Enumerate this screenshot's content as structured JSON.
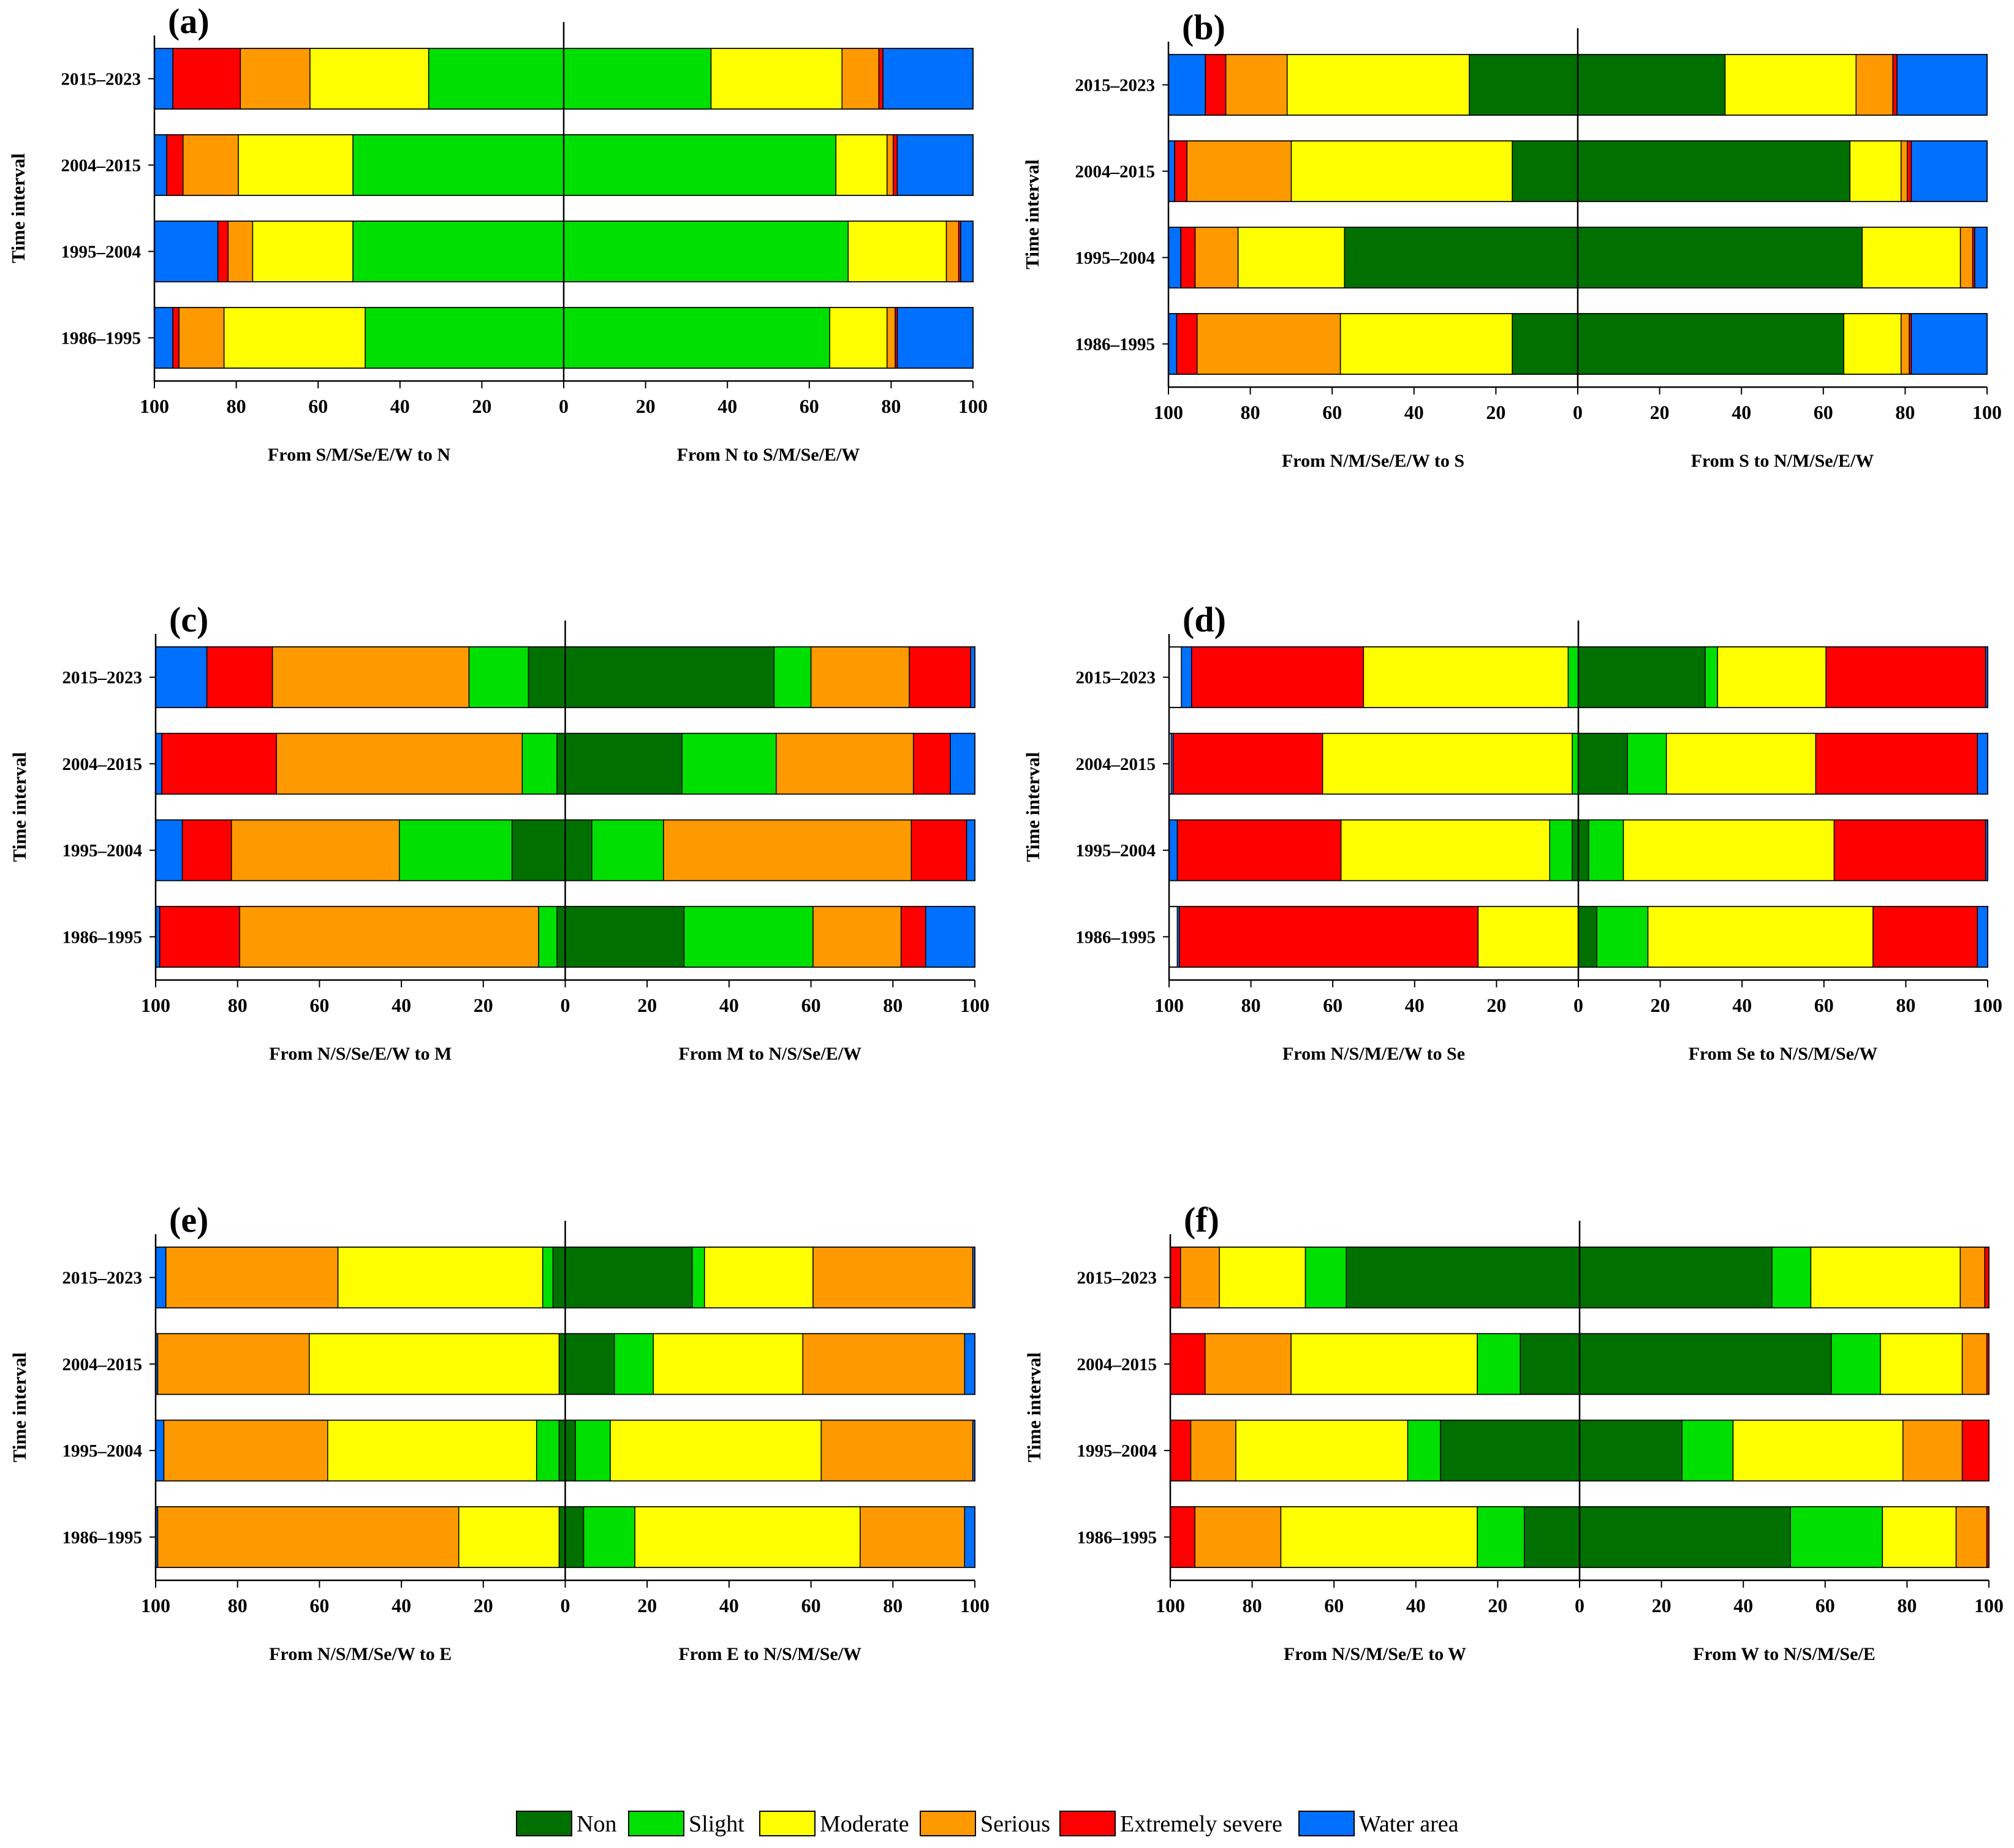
{
  "colors": {
    "Non": "#007000",
    "Slight": "#00e000",
    "Moderate": "#ffff00",
    "Serious": "#ff9900",
    "Extremely severe": "#ff0000",
    "Water area": "#0070ff"
  },
  "legend": [
    "Non",
    "Slight",
    "Moderate",
    "Serious",
    "Extremely severe",
    "Water area"
  ],
  "chart_data": [
    {
      "type": "bar",
      "label": "(a)",
      "ylabel": "Time interval",
      "categories": [
        "2015–2023",
        "2004–2015",
        "1995–2004",
        "1986–1995"
      ],
      "xlabel_left": "From S/M/Se/E/W to N",
      "xlabel_right": "From N to S/M/Se/E/W",
      "ticks": [
        "100",
        "80",
        "60",
        "40",
        "20",
        "0",
        "20",
        "40",
        "60",
        "80",
        "100"
      ],
      "xlim": [
        -100,
        100
      ],
      "left": [
        [
          [
            "Slight",
            33
          ],
          [
            "Moderate",
            29
          ],
          [
            "Serious",
            17
          ],
          [
            "Extremely severe",
            16.5
          ],
          [
            "Water area",
            4.5
          ]
        ],
        [
          [
            "Slight",
            51.5
          ],
          [
            "Moderate",
            28
          ],
          [
            "Serious",
            13.5
          ],
          [
            "Extremely severe",
            4
          ],
          [
            "Water area",
            3
          ]
        ],
        [
          [
            "Slight",
            51.5
          ],
          [
            "Moderate",
            24.5
          ],
          [
            "Serious",
            6
          ],
          [
            "Extremely severe",
            2.5
          ],
          [
            "Water area",
            15.5
          ]
        ],
        [
          [
            "Slight",
            48.5
          ],
          [
            "Moderate",
            34.5
          ],
          [
            "Serious",
            11
          ],
          [
            "Extremely severe",
            1.5
          ],
          [
            "Water area",
            4.5
          ]
        ]
      ],
      "right": [
        [
          [
            "Slight",
            36
          ],
          [
            "Moderate",
            32
          ],
          [
            "Serious",
            9
          ],
          [
            "Extremely severe",
            1
          ],
          [
            "Water area",
            22
          ]
        ],
        [
          [
            "Slight",
            66.5
          ],
          [
            "Moderate",
            12.5
          ],
          [
            "Serious",
            1.5
          ],
          [
            "Extremely severe",
            1
          ],
          [
            "Water area",
            18.5
          ]
        ],
        [
          [
            "Slight",
            69.5
          ],
          [
            "Moderate",
            24
          ],
          [
            "Serious",
            3
          ],
          [
            "Extremely severe",
            0.5
          ],
          [
            "Water area",
            3
          ]
        ],
        [
          [
            "Slight",
            65
          ],
          [
            "Moderate",
            14
          ],
          [
            "Serious",
            2
          ],
          [
            "Extremely severe",
            0.5
          ],
          [
            "Water area",
            18.5
          ]
        ]
      ]
    },
    {
      "type": "bar",
      "label": "(b)",
      "ylabel": "Time interval",
      "categories": [
        "2015–2023",
        "2004–2015",
        "1995–2004",
        "1986–1995"
      ],
      "xlabel_left": "From N/M/Se/E/W to S",
      "xlabel_right": "From S to N/M/Se/E/W",
      "ticks": [
        "100",
        "80",
        "60",
        "40",
        "20",
        "0",
        "20",
        "40",
        "60",
        "80",
        "100"
      ],
      "xlim": [
        -100,
        100
      ],
      "left": [
        [
          [
            "Non",
            26.5
          ],
          [
            "Moderate",
            44.5
          ],
          [
            "Serious",
            15
          ],
          [
            "Extremely severe",
            5
          ],
          [
            "Water area",
            9
          ]
        ],
        [
          [
            "Non",
            16
          ],
          [
            "Moderate",
            54
          ],
          [
            "Serious",
            25.5
          ],
          [
            "Extremely severe",
            3
          ],
          [
            "Water area",
            1.5
          ]
        ],
        [
          [
            "Non",
            57
          ],
          [
            "Moderate",
            26
          ],
          [
            "Serious",
            10.5
          ],
          [
            "Extremely severe",
            3.5
          ],
          [
            "Water area",
            3
          ]
        ],
        [
          [
            "Non",
            16
          ],
          [
            "Moderate",
            42
          ],
          [
            "Serious",
            35
          ],
          [
            "Extremely severe",
            5
          ],
          [
            "Water area",
            2
          ]
        ]
      ],
      "right": [
        [
          [
            "Non",
            36
          ],
          [
            "Moderate",
            32
          ],
          [
            "Serious",
            9
          ],
          [
            "Extremely severe",
            1
          ],
          [
            "Water area",
            22
          ]
        ],
        [
          [
            "Non",
            66.5
          ],
          [
            "Moderate",
            12.5
          ],
          [
            "Serious",
            1.5
          ],
          [
            "Extremely severe",
            1
          ],
          [
            "Water area",
            18.5
          ]
        ],
        [
          [
            "Non",
            69.5
          ],
          [
            "Moderate",
            24
          ],
          [
            "Serious",
            3
          ],
          [
            "Extremely severe",
            0.5
          ],
          [
            "Water area",
            3
          ]
        ],
        [
          [
            "Non",
            65
          ],
          [
            "Moderate",
            14
          ],
          [
            "Serious",
            2
          ],
          [
            "Extremely severe",
            0.5
          ],
          [
            "Water area",
            18.5
          ]
        ]
      ]
    },
    {
      "type": "bar",
      "label": "(c)",
      "ylabel": "Time interval",
      "categories": [
        "2015–2023",
        "2004–2015",
        "1995–2004",
        "1986–1995"
      ],
      "xlabel_left": "From N/S/Se/E/W to M",
      "xlabel_right": "From M to N/S/Se/E/W",
      "ticks": [
        "100",
        "80",
        "60",
        "40",
        "20",
        "0",
        "20",
        "40",
        "60",
        "80",
        "100"
      ],
      "xlim": [
        -100,
        100
      ],
      "left": [
        [
          [
            "Non",
            9
          ],
          [
            "Slight",
            14.5
          ],
          [
            "Serious",
            48
          ],
          [
            "Extremely severe",
            16
          ],
          [
            "Water area",
            12.5
          ]
        ],
        [
          [
            "Non",
            2
          ],
          [
            "Slight",
            8.5
          ],
          [
            "Serious",
            60
          ],
          [
            "Extremely severe",
            28
          ],
          [
            "Water area",
            1.5
          ]
        ],
        [
          [
            "Non",
            13
          ],
          [
            "Slight",
            27.5
          ],
          [
            "Serious",
            41
          ],
          [
            "Extremely severe",
            12
          ],
          [
            "Water area",
            6.5
          ]
        ],
        [
          [
            "Non",
            2
          ],
          [
            "Slight",
            4.5
          ],
          [
            "Serious",
            73
          ],
          [
            "Extremely severe",
            19.5
          ],
          [
            "Water area",
            1
          ]
        ]
      ],
      "right": [
        [
          [
            "Non",
            51
          ],
          [
            "Slight",
            9
          ],
          [
            "Serious",
            24
          ],
          [
            "Extremely severe",
            15
          ],
          [
            "Water area",
            1
          ]
        ],
        [
          [
            "Non",
            28.5
          ],
          [
            "Slight",
            23
          ],
          [
            "Serious",
            33.5
          ],
          [
            "Extremely severe",
            9
          ],
          [
            "Water area",
            6
          ]
        ],
        [
          [
            "Non",
            6.5
          ],
          [
            "Slight",
            17.5
          ],
          [
            "Serious",
            60.5
          ],
          [
            "Extremely severe",
            13.5
          ],
          [
            "Water area",
            2
          ]
        ],
        [
          [
            "Non",
            29
          ],
          [
            "Slight",
            31.5
          ],
          [
            "Serious",
            21.5
          ],
          [
            "Extremely severe",
            6
          ],
          [
            "Water area",
            12
          ]
        ]
      ]
    },
    {
      "type": "bar",
      "label": "(d)",
      "ylabel": "Time interval",
      "categories": [
        "2015–2023",
        "2004–2015",
        "1995–2004",
        "1986–1995"
      ],
      "xlabel_left": "From N/S/M/E/W to Se",
      "xlabel_right": "From Se to N/S/M/Se/W",
      "ticks": [
        "100",
        "80",
        "60",
        "40",
        "20",
        "0",
        "20",
        "40",
        "60",
        "80",
        "100"
      ],
      "xlim": [
        -100,
        100
      ],
      "left": [
        [
          [
            "Slight",
            2.5
          ],
          [
            "Moderate",
            50
          ],
          [
            "Extremely severe",
            42
          ],
          [
            "Water area",
            2.5
          ]
        ],
        [
          [
            "Slight",
            1.5
          ],
          [
            "Moderate",
            61
          ],
          [
            "Extremely severe",
            36.5
          ],
          [
            "Water area",
            0.5
          ]
        ],
        [
          [
            "Non",
            1.5
          ],
          [
            "Slight",
            5.5
          ],
          [
            "Moderate",
            51
          ],
          [
            "Extremely severe",
            40
          ],
          [
            "Water area",
            2
          ]
        ],
        [
          [
            "Moderate",
            24.5
          ],
          [
            "Extremely severe",
            73
          ],
          [
            "Water area",
            0.5
          ]
        ]
      ],
      "right": [
        [
          [
            "Non",
            31
          ],
          [
            "Slight",
            3
          ],
          [
            "Moderate",
            26.5
          ],
          [
            "Extremely severe",
            39
          ],
          [
            "Water area",
            0.5
          ]
        ],
        [
          [
            "Non",
            12
          ],
          [
            "Slight",
            9.5
          ],
          [
            "Moderate",
            36.5
          ],
          [
            "Extremely severe",
            39.5
          ],
          [
            "Water area",
            2.5
          ]
        ],
        [
          [
            "Non",
            2.5
          ],
          [
            "Slight",
            8.5
          ],
          [
            "Moderate",
            51.5
          ],
          [
            "Extremely severe",
            37
          ],
          [
            "Water area",
            0.5
          ]
        ],
        [
          [
            "Non",
            4.5
          ],
          [
            "Slight",
            12.5
          ],
          [
            "Moderate",
            55
          ],
          [
            "Extremely severe",
            25.5
          ],
          [
            "Water area",
            2.5
          ]
        ]
      ]
    },
    {
      "type": "bar",
      "label": "(e)",
      "ylabel": "Time interval",
      "categories": [
        "2015–2023",
        "2004–2015",
        "1995–2004",
        "1986–1995"
      ],
      "xlabel_left": "From N/S/M/Se/W to E",
      "xlabel_right": "From E to N/S/M/Se/W",
      "ticks": [
        "100",
        "80",
        "60",
        "40",
        "20",
        "0",
        "20",
        "40",
        "60",
        "80",
        "100"
      ],
      "xlim": [
        -100,
        100
      ],
      "left": [
        [
          [
            "Non",
            3
          ],
          [
            "Slight",
            2.5
          ],
          [
            "Moderate",
            50
          ],
          [
            "Serious",
            42
          ],
          [
            "Water area",
            2.5
          ]
        ],
        [
          [
            "Non",
            1.5
          ],
          [
            "Moderate",
            61
          ],
          [
            "Serious",
            37
          ],
          [
            "Water area",
            0.5
          ]
        ],
        [
          [
            "Non",
            1.5
          ],
          [
            "Slight",
            5.5
          ],
          [
            "Moderate",
            51
          ],
          [
            "Serious",
            40
          ],
          [
            "Water area",
            2
          ]
        ],
        [
          [
            "Non",
            1.5
          ],
          [
            "Moderate",
            24.5
          ],
          [
            "Serious",
            73.5
          ],
          [
            "Water area",
            0.5
          ]
        ]
      ],
      "right": [
        [
          [
            "Non",
            31
          ],
          [
            "Slight",
            3
          ],
          [
            "Moderate",
            26.5
          ],
          [
            "Serious",
            39
          ],
          [
            "Water area",
            0.5
          ]
        ],
        [
          [
            "Non",
            12
          ],
          [
            "Slight",
            9.5
          ],
          [
            "Moderate",
            36.5
          ],
          [
            "Serious",
            39.5
          ],
          [
            "Water area",
            2.5
          ]
        ],
        [
          [
            "Non",
            2.5
          ],
          [
            "Slight",
            8.5
          ],
          [
            "Moderate",
            51.5
          ],
          [
            "Serious",
            37
          ],
          [
            "Water area",
            0.5
          ]
        ],
        [
          [
            "Non",
            4.5
          ],
          [
            "Slight",
            12.5
          ],
          [
            "Moderate",
            55
          ],
          [
            "Serious",
            25.5
          ],
          [
            "Water area",
            2.5
          ]
        ]
      ]
    },
    {
      "type": "bar",
      "label": "(f)",
      "ylabel": "Time interval",
      "categories": [
        "2015–2023",
        "2004–2015",
        "1995–2004",
        "1986–1995"
      ],
      "xlabel_left": "From N/S/M/Se/E to W",
      "xlabel_right": "From W to N/S/M/Se/E",
      "ticks": [
        "100",
        "80",
        "60",
        "40",
        "20",
        "0",
        "20",
        "40",
        "60",
        "80",
        "100"
      ],
      "xlim": [
        -100,
        100
      ],
      "left": [
        [
          [
            "Non",
            57
          ],
          [
            "Slight",
            10
          ],
          [
            "Moderate",
            21
          ],
          [
            "Serious",
            9.5
          ],
          [
            "Extremely severe",
            2.5
          ]
        ],
        [
          [
            "Non",
            14.5
          ],
          [
            "Slight",
            10.5
          ],
          [
            "Moderate",
            45.5
          ],
          [
            "Serious",
            21
          ],
          [
            "Extremely severe",
            8.5
          ]
        ],
        [
          [
            "Non",
            34
          ],
          [
            "Slight",
            8
          ],
          [
            "Moderate",
            42
          ],
          [
            "Serious",
            11
          ],
          [
            "Extremely severe",
            5
          ]
        ],
        [
          [
            "Non",
            13.5
          ],
          [
            "Slight",
            11.5
          ],
          [
            "Moderate",
            48
          ],
          [
            "Serious",
            21
          ],
          [
            "Extremely severe",
            6
          ]
        ]
      ],
      "right": [
        [
          [
            "Non",
            47
          ],
          [
            "Slight",
            9.5
          ],
          [
            "Moderate",
            36.5
          ],
          [
            "Serious",
            6
          ],
          [
            "Extremely severe",
            1
          ]
        ],
        [
          [
            "Non",
            61.5
          ],
          [
            "Slight",
            12
          ],
          [
            "Moderate",
            20
          ],
          [
            "Serious",
            6
          ],
          [
            "Extremely severe",
            0.5
          ]
        ],
        [
          [
            "Non",
            25
          ],
          [
            "Slight",
            12.5
          ],
          [
            "Moderate",
            41.5
          ],
          [
            "Serious",
            14.5
          ],
          [
            "Extremely severe",
            6.5
          ]
        ],
        [
          [
            "Non",
            51.5
          ],
          [
            "Slight",
            22.5
          ],
          [
            "Moderate",
            18
          ],
          [
            "Serious",
            7.5
          ],
          [
            "Extremely severe",
            0.5
          ]
        ]
      ]
    }
  ]
}
